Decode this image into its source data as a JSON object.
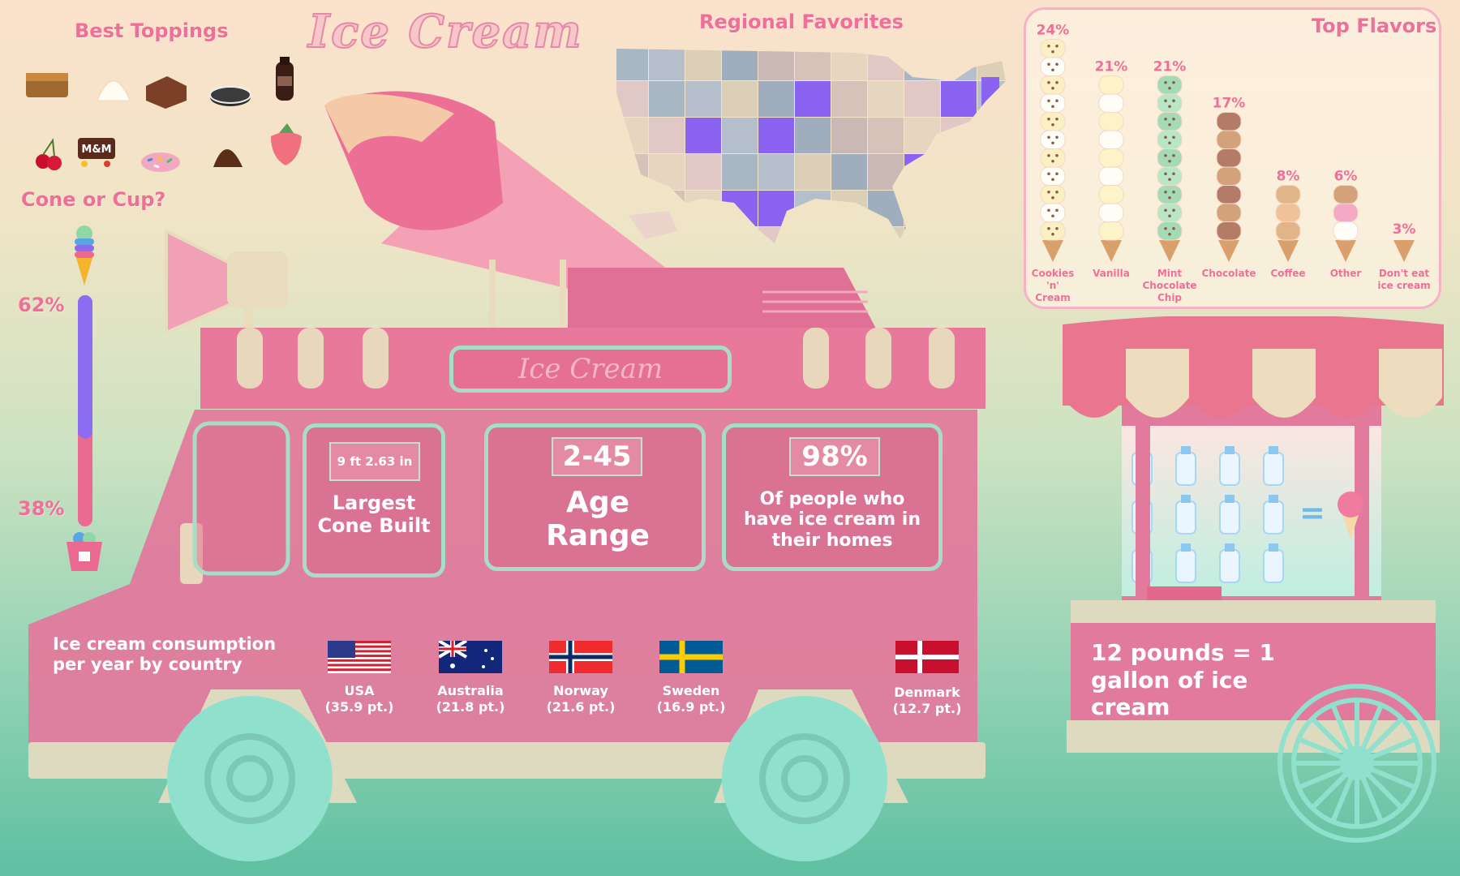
{
  "title": "Ice Cream",
  "toppings": {
    "heading": "Best Toppings",
    "items": [
      "caramel-bar-icon",
      "whipped-cream-icon",
      "brownie-icon",
      "oreo-cookie-icon",
      "chocolate-syrup-icon",
      "cherry-icon",
      "m-and-ms-icon",
      "sprinkles-icon",
      "chocolate-chip-icon",
      "strawberry-icon"
    ]
  },
  "cone_or_cup": {
    "heading": "Cone or Cup?",
    "cone_pct": "62%",
    "cup_pct": "38%",
    "cone_value": 62,
    "cup_value": 38,
    "cone_color": "#8c6cf0",
    "cup_color": "#ec6a92"
  },
  "map": {
    "heading": "Regional Favorites",
    "highlight_color": "#8a63f0"
  },
  "truck": {
    "sign": "Ice Cream",
    "stats": [
      {
        "badge": "9 ft 2.63 in",
        "text": "Largest Cone Built"
      },
      {
        "badge": "2-45",
        "text": "Age Range"
      },
      {
        "badge": "98%",
        "text": "Of people who have ice cream in their homes"
      }
    ],
    "consumption_heading": "Ice cream consumption per year by country",
    "countries": [
      {
        "name": "USA",
        "value": "(35.9 pt.)",
        "flag": "usa-flag-icon"
      },
      {
        "name": "Australia",
        "value": "(21.8 pt.)",
        "flag": "australia-flag-icon"
      },
      {
        "name": "Norway",
        "value": "(21.6 pt.)",
        "flag": "norway-flag-icon"
      },
      {
        "name": "Sweden",
        "value": "(16.9 pt.)",
        "flag": "sweden-flag-icon"
      },
      {
        "name": "Denmark",
        "value": "(12.7 pt.)",
        "flag": "denmark-flag-icon"
      }
    ]
  },
  "cart": {
    "equals": "=",
    "fact": "12 pounds = 1 gallon of ice cream",
    "milk_bottles": 12
  },
  "chart_data": {
    "type": "bar",
    "title": "Top Flavors",
    "categories": [
      "Cookies 'n' Cream",
      "Vanilla",
      "Mint Chocolate Chip",
      "Chocolate",
      "Coffee",
      "Other",
      "Don't eat ice cream"
    ],
    "values": [
      24,
      21,
      21,
      17,
      8,
      6,
      3
    ],
    "labels": [
      "24%",
      "21%",
      "21%",
      "17%",
      "8%",
      "6%",
      "3%"
    ],
    "scoops": [
      11,
      9,
      9,
      7,
      3,
      3,
      0
    ]
  }
}
